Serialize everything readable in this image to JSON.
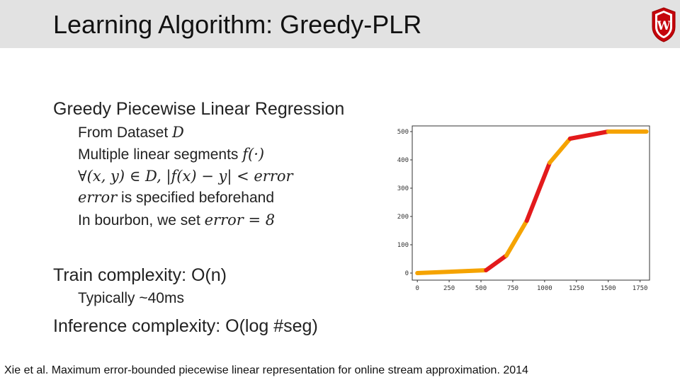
{
  "slide": {
    "title": "Learning Algorithm: Greedy-PLR",
    "logo": "university-crest-w",
    "citation": "Xie et al. Maximum error-bounded piecewise linear representation for online stream approximation. 2014"
  },
  "content": {
    "heading": "Greedy Piecewise Linear Regression",
    "line1_text": "From Dataset ",
    "line1_math": "D",
    "line2_text": "Multiple linear segments ",
    "line2_math": "f(·)",
    "line3_math": "∀(x, y) ∈ D, |f(x) − y| < error",
    "line4_math": "error",
    "line4_text": " is specified beforehand",
    "line5_text": "In bourbon, we set ",
    "line5_math": "error = 8",
    "train": "Train complexity: O(n)",
    "train_sub": "Typically ~40ms",
    "inference": "Inference complexity: O(log #seg)"
  },
  "chart_data": {
    "type": "line",
    "xticks": [
      "0",
      "250",
      "500",
      "750",
      "1000",
      "1250",
      "1500",
      "1750"
    ],
    "yticks": [
      "0",
      "100",
      "200",
      "300",
      "400",
      "500"
    ],
    "xlim": [
      -40,
      1830
    ],
    "ylim": [
      -25,
      520
    ],
    "grid": false,
    "segment_colors": [
      "#f5a300",
      "#e31a1c"
    ],
    "segments": [
      {
        "x": [
          0,
          540
        ],
        "y": [
          0,
          10
        ]
      },
      {
        "x": [
          540,
          700
        ],
        "y": [
          10,
          62
        ]
      },
      {
        "x": [
          700,
          860
        ],
        "y": [
          62,
          185
        ]
      },
      {
        "x": [
          860,
          1040
        ],
        "y": [
          185,
          390
        ]
      },
      {
        "x": [
          1040,
          1200
        ],
        "y": [
          390,
          475
        ]
      },
      {
        "x": [
          1200,
          1500
        ],
        "y": [
          475,
          500
        ]
      },
      {
        "x": [
          1500,
          1800
        ],
        "y": [
          500,
          500
        ]
      }
    ]
  }
}
